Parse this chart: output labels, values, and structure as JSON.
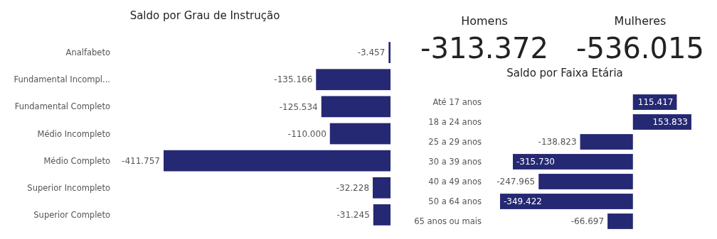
{
  "chart_data": [
    {
      "type": "bar",
      "title": "Saldo por Grau de Instrução",
      "orientation": "horizontal",
      "categories": [
        "Analfabeto",
        "Fundamental Incompl...",
        "Fundamental Completo",
        "Médio Incompleto",
        "Médio Completo",
        "Superior Incompleto",
        "Superior Completo"
      ],
      "values": [
        -3457,
        -135166,
        -125534,
        -110000,
        -411757,
        -32228,
        -31245
      ],
      "value_labels": [
        "-3.457",
        "-135.166",
        "-125.534",
        "-110.000",
        "-411.757",
        "-32.228",
        "-31.245"
      ],
      "color": "#252872",
      "tick_labels": "y"
    },
    {
      "type": "other",
      "categories": [
        "Homens",
        "Mulheres"
      ],
      "values": [
        -313372,
        -536015
      ],
      "value_labels": [
        "-313.372",
        "-536.015"
      ]
    },
    {
      "type": "bar",
      "title": "Saldo por Faixa Etária",
      "orientation": "horizontal",
      "categories": [
        "Até 17 anos",
        "18 a 24 anos",
        "25 a 29 anos",
        "30 a 39 anos",
        "40 a 49 anos",
        "50 a 64 anos",
        "65 anos ou mais"
      ],
      "values": [
        115417,
        153833,
        -138823,
        -315730,
        -247965,
        -349422,
        -66697
      ],
      "value_labels": [
        "115.417",
        "153.833",
        "-138.823",
        "-315.730",
        "-247.965",
        "-349.422",
        "-66.697"
      ],
      "color": "#252872",
      "tick_labels": "y"
    }
  ]
}
